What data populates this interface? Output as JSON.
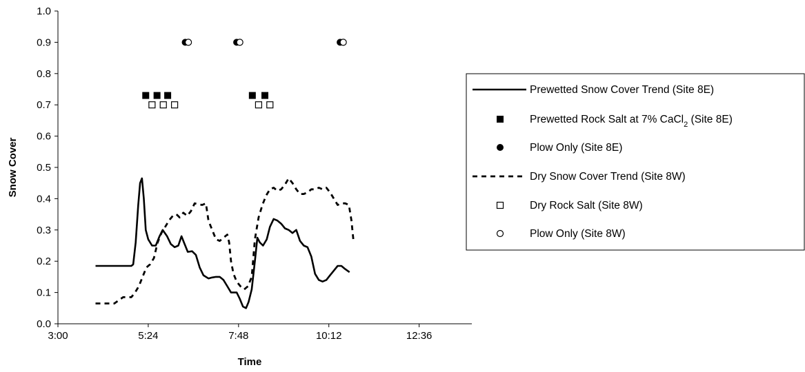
{
  "chart_data": {
    "type": "line",
    "title": "",
    "xlabel": "Time",
    "ylabel": "Snow Cover",
    "xlim": [
      "3:00",
      "14:00"
    ],
    "ylim": [
      0,
      1.0
    ],
    "x_ticks": [
      "3:00",
      "5:24",
      "7:48",
      "10:12",
      "12:36"
    ],
    "y_ticks": [
      "0.0",
      "0.1",
      "0.2",
      "0.3",
      "0.4",
      "0.5",
      "0.6",
      "0.7",
      "0.8",
      "0.9",
      "1.0"
    ],
    "grid": false,
    "legend_position": "right",
    "series": [
      {
        "name": "Prewetted Snow Cover Trend (Site 8E)",
        "style": "solid-line",
        "color": "#000000",
        "points": [
          [
            "4:00",
            0.185
          ],
          [
            "4:30",
            0.185
          ],
          [
            "4:57",
            0.185
          ],
          [
            "5:00",
            0.19
          ],
          [
            "5:04",
            0.26
          ],
          [
            "5:08",
            0.38
          ],
          [
            "5:11",
            0.45
          ],
          [
            "5:14",
            0.465
          ],
          [
            "5:17",
            0.4
          ],
          [
            "5:20",
            0.3
          ],
          [
            "5:24",
            0.27
          ],
          [
            "5:30",
            0.25
          ],
          [
            "5:36",
            0.25
          ],
          [
            "5:42",
            0.28
          ],
          [
            "5:47",
            0.3
          ],
          [
            "5:54",
            0.28
          ],
          [
            "6:00",
            0.255
          ],
          [
            "6:06",
            0.245
          ],
          [
            "6:12",
            0.25
          ],
          [
            "6:17",
            0.28
          ],
          [
            "6:21",
            0.26
          ],
          [
            "6:27",
            0.23
          ],
          [
            "6:34",
            0.232
          ],
          [
            "6:40",
            0.22
          ],
          [
            "6:46",
            0.18
          ],
          [
            "6:52",
            0.155
          ],
          [
            "7:00",
            0.145
          ],
          [
            "7:06",
            0.148
          ],
          [
            "7:12",
            0.15
          ],
          [
            "7:18",
            0.15
          ],
          [
            "7:24",
            0.14
          ],
          [
            "7:30",
            0.12
          ],
          [
            "7:36",
            0.1
          ],
          [
            "7:45",
            0.1
          ],
          [
            "7:50",
            0.08
          ],
          [
            "7:55",
            0.055
          ],
          [
            "8:00",
            0.05
          ],
          [
            "8:04",
            0.07
          ],
          [
            "8:09",
            0.11
          ],
          [
            "8:14",
            0.2
          ],
          [
            "8:18",
            0.275
          ],
          [
            "8:22",
            0.26
          ],
          [
            "8:27",
            0.25
          ],
          [
            "8:33",
            0.27
          ],
          [
            "8:38",
            0.31
          ],
          [
            "8:44",
            0.335
          ],
          [
            "8:50",
            0.33
          ],
          [
            "8:56",
            0.32
          ],
          [
            "9:02",
            0.305
          ],
          [
            "9:08",
            0.3
          ],
          [
            "9:14",
            0.29
          ],
          [
            "9:20",
            0.3
          ],
          [
            "9:26",
            0.265
          ],
          [
            "9:32",
            0.25
          ],
          [
            "9:38",
            0.245
          ],
          [
            "9:44",
            0.215
          ],
          [
            "9:50",
            0.16
          ],
          [
            "9:56",
            0.14
          ],
          [
            "10:02",
            0.135
          ],
          [
            "10:08",
            0.14
          ],
          [
            "10:14",
            0.155
          ],
          [
            "10:20",
            0.17
          ],
          [
            "10:26",
            0.185
          ],
          [
            "10:32",
            0.185
          ],
          [
            "10:38",
            0.175
          ],
          [
            "10:45",
            0.165
          ]
        ]
      },
      {
        "name": "Prewetted Rock Salt at 7% CaCl2 (Site 8E)",
        "style": "filled-square",
        "color": "#000000",
        "points": [
          [
            "5:20",
            0.73
          ],
          [
            "5:38",
            0.73
          ],
          [
            "5:55",
            0.73
          ],
          [
            "8:10",
            0.73
          ],
          [
            "8:30",
            0.73
          ]
        ]
      },
      {
        "name": "Plow Only (Site 8E)",
        "style": "filled-circle",
        "color": "#000000",
        "points": [
          [
            "6:23",
            0.9
          ],
          [
            "7:45",
            0.9
          ],
          [
            "10:30",
            0.9
          ]
        ]
      },
      {
        "name": "Dry Snow Cover Trend (Site 8W)",
        "style": "dashed-line",
        "color": "#000000",
        "points": [
          [
            "4:00",
            0.065
          ],
          [
            "4:15",
            0.065
          ],
          [
            "4:30",
            0.065
          ],
          [
            "4:37",
            0.075
          ],
          [
            "4:44",
            0.085
          ],
          [
            "4:57",
            0.085
          ],
          [
            "5:03",
            0.1
          ],
          [
            "5:09",
            0.12
          ],
          [
            "5:15",
            0.15
          ],
          [
            "5:21",
            0.18
          ],
          [
            "5:27",
            0.19
          ],
          [
            "5:33",
            0.21
          ],
          [
            "5:39",
            0.26
          ],
          [
            "5:45",
            0.29
          ],
          [
            "5:51",
            0.31
          ],
          [
            "5:57",
            0.33
          ],
          [
            "6:03",
            0.345
          ],
          [
            "6:09",
            0.35
          ],
          [
            "6:14",
            0.34
          ],
          [
            "6:20",
            0.355
          ],
          [
            "6:26",
            0.345
          ],
          [
            "6:32",
            0.36
          ],
          [
            "6:38",
            0.385
          ],
          [
            "6:50",
            0.38
          ],
          [
            "6:56",
            0.385
          ],
          [
            "7:00",
            0.33
          ],
          [
            "7:06",
            0.3
          ],
          [
            "7:12",
            0.27
          ],
          [
            "7:18",
            0.265
          ],
          [
            "7:24",
            0.275
          ],
          [
            "7:30",
            0.285
          ],
          [
            "7:33",
            0.26
          ],
          [
            "7:36",
            0.2
          ],
          [
            "7:40",
            0.16
          ],
          [
            "7:45",
            0.135
          ],
          [
            "7:51",
            0.12
          ],
          [
            "7:57",
            0.11
          ],
          [
            "8:03",
            0.12
          ],
          [
            "8:09",
            0.15
          ],
          [
            "8:14",
            0.27
          ],
          [
            "8:20",
            0.34
          ],
          [
            "8:26",
            0.38
          ],
          [
            "8:32",
            0.41
          ],
          [
            "8:38",
            0.43
          ],
          [
            "8:44",
            0.435
          ],
          [
            "8:50",
            0.425
          ],
          [
            "8:56",
            0.43
          ],
          [
            "9:02",
            0.445
          ],
          [
            "9:08",
            0.465
          ],
          [
            "9:14",
            0.45
          ],
          [
            "9:20",
            0.43
          ],
          [
            "9:26",
            0.415
          ],
          [
            "9:32",
            0.415
          ],
          [
            "9:38",
            0.42
          ],
          [
            "9:44",
            0.43
          ],
          [
            "9:50",
            0.43
          ],
          [
            "9:56",
            0.435
          ],
          [
            "10:02",
            0.43
          ],
          [
            "10:08",
            0.435
          ],
          [
            "10:14",
            0.42
          ],
          [
            "10:20",
            0.4
          ],
          [
            "10:26",
            0.38
          ],
          [
            "10:32",
            0.385
          ],
          [
            "10:38",
            0.385
          ],
          [
            "10:44",
            0.38
          ],
          [
            "10:48",
            0.33
          ],
          [
            "10:51",
            0.27
          ]
        ]
      },
      {
        "name": "Dry Rock Salt (Site 8W)",
        "style": "open-square",
        "color": "#000000",
        "points": [
          [
            "5:30",
            0.7
          ],
          [
            "5:48",
            0.7
          ],
          [
            "6:06",
            0.7
          ],
          [
            "8:20",
            0.7
          ],
          [
            "8:38",
            0.7
          ]
        ]
      },
      {
        "name": "Plow Only (Site 8W)",
        "style": "open-circle",
        "color": "#000000",
        "points": [
          [
            "6:28",
            0.9
          ],
          [
            "7:50",
            0.9
          ],
          [
            "10:35",
            0.9
          ]
        ]
      }
    ]
  },
  "legend": {
    "items": [
      {
        "label": "Prewetted Snow Cover Trend (Site 8E)",
        "symbol": "solid-line"
      },
      {
        "label": "Prewetted Rock Salt at 7% CaCl",
        "sub": "2",
        "tail": " (Site 8E)",
        "symbol": "filled-square"
      },
      {
        "label": "Plow Only (Site 8E)",
        "symbol": "filled-circle"
      },
      {
        "label": "Dry Snow Cover Trend (Site 8W)",
        "symbol": "dashed-line"
      },
      {
        "label": "Dry Rock Salt (Site 8W)",
        "symbol": "open-square"
      },
      {
        "label": "Plow Only (Site 8W)",
        "symbol": "open-circle"
      }
    ]
  }
}
